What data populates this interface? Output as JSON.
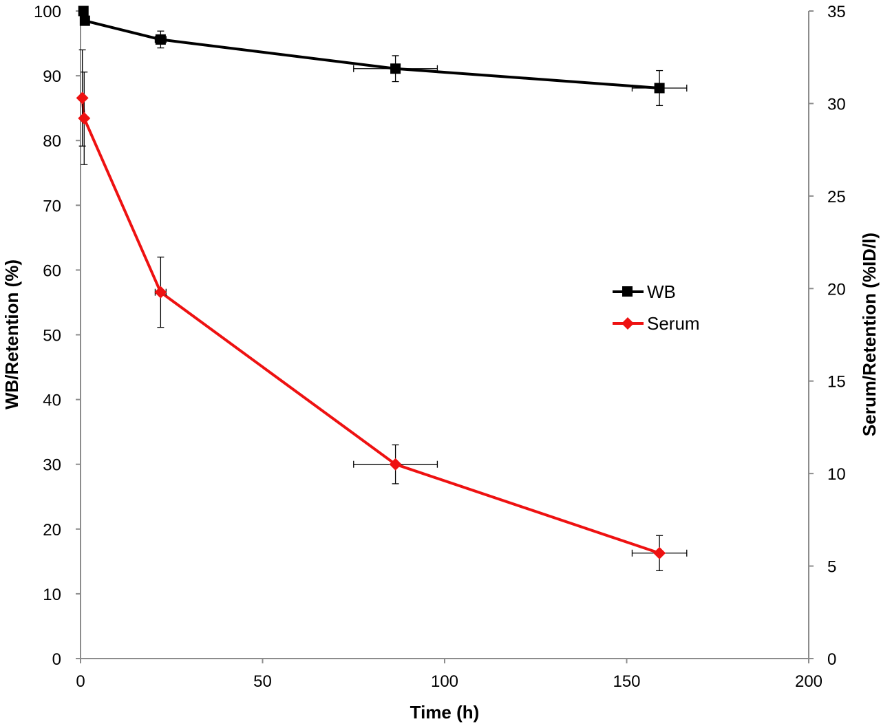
{
  "chart_data": {
    "type": "line",
    "xlabel": "Time (h)",
    "ylabel_left": "WB/Retention (%)",
    "ylabel_right": "Serum/Retention (%ID/l)",
    "xlim": [
      0,
      200
    ],
    "ylim_left": [
      0,
      100
    ],
    "ylim_right": [
      0,
      35
    ],
    "x_ticks": [
      0,
      50,
      100,
      150,
      200
    ],
    "y_ticks_left": [
      0,
      10,
      20,
      30,
      40,
      50,
      60,
      70,
      80,
      90,
      100
    ],
    "y_ticks_right": [
      0,
      5,
      10,
      15,
      20,
      25,
      30,
      35
    ],
    "grid": false,
    "legend_position": "center-right",
    "series": [
      {
        "name": "WB",
        "axis": "left",
        "color": "#000000",
        "marker": "square",
        "points": [
          {
            "x": 0.8,
            "y": 100.0,
            "yerr": 0.3,
            "xerr": 0
          },
          {
            "x": 1.2,
            "y": 98.5,
            "yerr": 0.5,
            "xerr": 0.3
          },
          {
            "x": 22,
            "y": 95.6,
            "yerr": 1.3,
            "xerr": 1.5
          },
          {
            "x": 86.5,
            "y": 91.1,
            "yerr": 2.0,
            "xerr": 11.5
          },
          {
            "x": 159,
            "y": 88.1,
            "yerr": 2.7,
            "xerr": 7.5
          }
        ]
      },
      {
        "name": "Serum",
        "axis": "right",
        "color": "#ee1111",
        "marker": "diamond",
        "points": [
          {
            "x": 0.5,
            "y": 30.3,
            "yerr": 2.6,
            "xerr": 0
          },
          {
            "x": 1,
            "y": 29.2,
            "yerr": 2.5,
            "xerr": 0.3
          },
          {
            "x": 22,
            "y": 19.8,
            "yerr": 1.9,
            "xerr": 1.5
          },
          {
            "x": 86.5,
            "y": 10.5,
            "yerr": 1.05,
            "xerr": 11.5
          },
          {
            "x": 159,
            "y": 5.7,
            "yerr": 0.95,
            "xerr": 7.5
          }
        ]
      }
    ]
  }
}
